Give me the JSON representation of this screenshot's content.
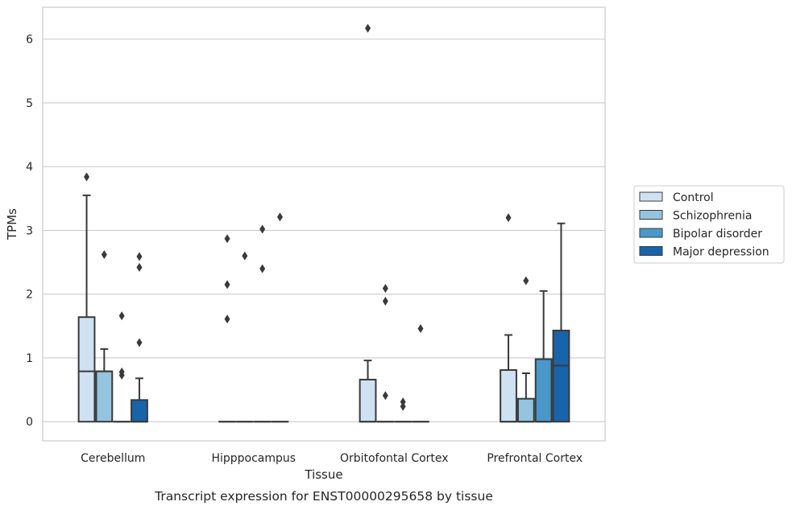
{
  "chart_data": {
    "type": "box",
    "caption": "Transcript expression for ENST00000295658 by tissue",
    "xlabel": "Tissue",
    "ylabel": "TPMs",
    "ylim": [
      -0.3,
      6.5
    ],
    "yticks": [
      0,
      1,
      2,
      3,
      4,
      5,
      6
    ],
    "grid": true,
    "legend_position": "right",
    "categories": [
      "Cerebellum",
      "Hipppocampus",
      "Orbitofontal Cortex",
      "Prefrontal Cortex"
    ],
    "series": [
      {
        "name": "Control",
        "color": "#d0e1f2",
        "boxes": [
          {
            "q1": 0,
            "median": 0.79,
            "q3": 1.64,
            "whisker_low": 0,
            "whisker_high": 3.55,
            "outliers": [
              3.84
            ]
          },
          {
            "q1": 0,
            "median": 0,
            "q3": 0,
            "whisker_low": 0,
            "whisker_high": 0,
            "outliers": [
              1.61,
              2.15,
              2.87
            ]
          },
          {
            "q1": 0,
            "median": 0,
            "q3": 0.66,
            "whisker_low": 0,
            "whisker_high": 0.96,
            "outliers": [
              6.17
            ]
          },
          {
            "q1": 0,
            "median": 0,
            "q3": 0.81,
            "whisker_low": 0,
            "whisker_high": 1.36,
            "outliers": [
              3.2
            ]
          }
        ]
      },
      {
        "name": "Schizophrenia",
        "color": "#94c4df",
        "boxes": [
          {
            "q1": 0,
            "median": 0.79,
            "q3": 0.79,
            "whisker_low": 0,
            "whisker_high": 1.14,
            "outliers": [
              2.62
            ]
          },
          {
            "q1": 0,
            "median": 0,
            "q3": 0,
            "whisker_low": 0,
            "whisker_high": 0,
            "outliers": [
              2.6
            ]
          },
          {
            "q1": 0,
            "median": 0,
            "q3": 0,
            "whisker_low": 0,
            "whisker_high": 0,
            "outliers": [
              0.41,
              1.89,
              2.09
            ]
          },
          {
            "q1": 0,
            "median": 0,
            "q3": 0.36,
            "whisker_low": 0,
            "whisker_high": 0.76,
            "outliers": [
              2.21
            ]
          }
        ]
      },
      {
        "name": "Bipolar disorder",
        "color": "#4a98c9",
        "boxes": [
          {
            "q1": 0,
            "median": 0,
            "q3": 0,
            "whisker_low": 0,
            "whisker_high": 0,
            "outliers": [
              0.73,
              0.78,
              1.66
            ]
          },
          {
            "q1": 0,
            "median": 0,
            "q3": 0,
            "whisker_low": 0,
            "whisker_high": 0,
            "outliers": [
              2.4,
              3.02
            ]
          },
          {
            "q1": 0,
            "median": 0,
            "q3": 0,
            "whisker_low": 0,
            "whisker_high": 0,
            "outliers": [
              0.24,
              0.31
            ]
          },
          {
            "q1": 0,
            "median": 0,
            "q3": 0.98,
            "whisker_low": 0,
            "whisker_high": 2.05,
            "outliers": []
          }
        ]
      },
      {
        "name": "Major depression",
        "color": "#1764ab",
        "boxes": [
          {
            "q1": 0,
            "median": 0,
            "q3": 0.34,
            "whisker_low": 0,
            "whisker_high": 0.68,
            "outliers": [
              1.24,
              2.42,
              2.59
            ]
          },
          {
            "q1": 0,
            "median": 0,
            "q3": 0,
            "whisker_low": 0,
            "whisker_high": 0,
            "outliers": [
              3.21
            ]
          },
          {
            "q1": 0,
            "median": 0,
            "q3": 0,
            "whisker_low": 0,
            "whisker_high": 0,
            "outliers": [
              1.46
            ]
          },
          {
            "q1": 0,
            "median": 0.88,
            "q3": 1.43,
            "whisker_low": 0,
            "whisker_high": 3.11,
            "outliers": []
          }
        ]
      }
    ]
  }
}
